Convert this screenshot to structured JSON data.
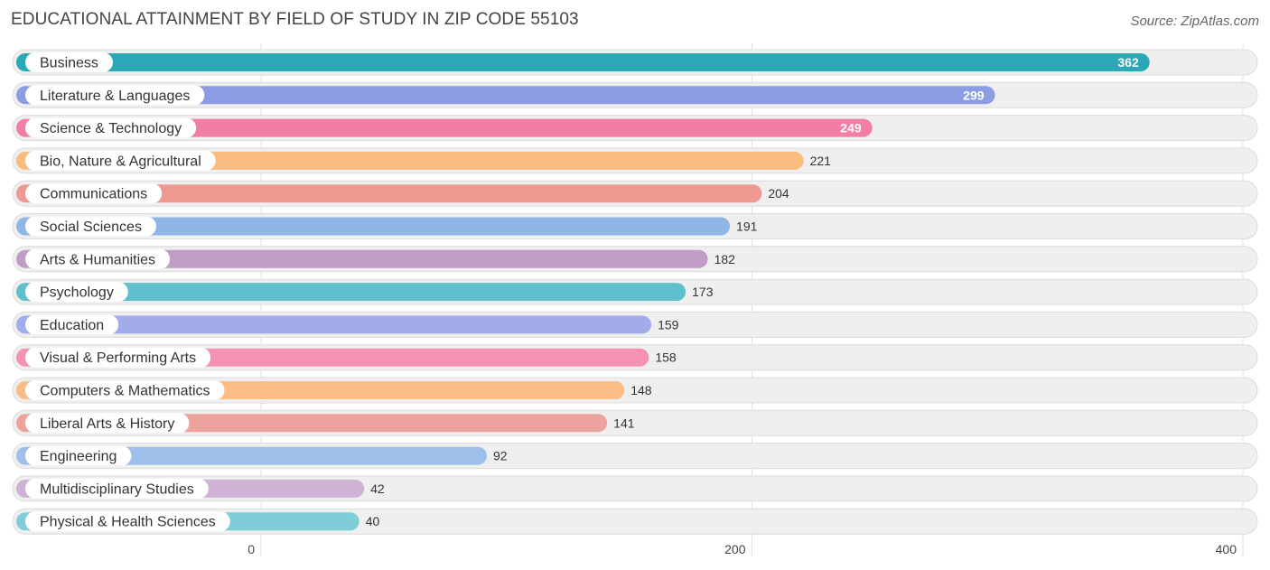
{
  "header": {
    "title": "EDUCATIONAL ATTAINMENT BY FIELD OF STUDY IN ZIP CODE 55103",
    "source": "Source: ZipAtlas.com"
  },
  "chart_data": {
    "type": "bar",
    "orientation": "horizontal",
    "title": "EDUCATIONAL ATTAINMENT BY FIELD OF STUDY IN ZIP CODE 55103",
    "xlabel": "",
    "ylabel": "",
    "xlim": [
      0,
      400
    ],
    "xticks": [
      0,
      200,
      400
    ],
    "grid": true,
    "categories": [
      "Business",
      "Literature & Languages",
      "Science & Technology",
      "Bio, Nature & Agricultural",
      "Communications",
      "Social Sciences",
      "Arts & Humanities",
      "Psychology",
      "Education",
      "Visual & Performing Arts",
      "Computers & Mathematics",
      "Liberal Arts & History",
      "Engineering",
      "Multidisciplinary Studies",
      "Physical & Health Sciences"
    ],
    "values": [
      362,
      299,
      249,
      221,
      204,
      191,
      182,
      173,
      159,
      158,
      148,
      141,
      92,
      42,
      40
    ],
    "colors": [
      "#2aa8b5",
      "#8c9de3",
      "#f27ea4",
      "#f9bb7e",
      "#ee9892",
      "#8eb6e6",
      "#c09cc6",
      "#5fbfcc",
      "#a2acea",
      "#f591b4",
      "#f9bd85",
      "#eda29e",
      "#9ebfea",
      "#cfb2d6",
      "#7fcdd6"
    ]
  }
}
